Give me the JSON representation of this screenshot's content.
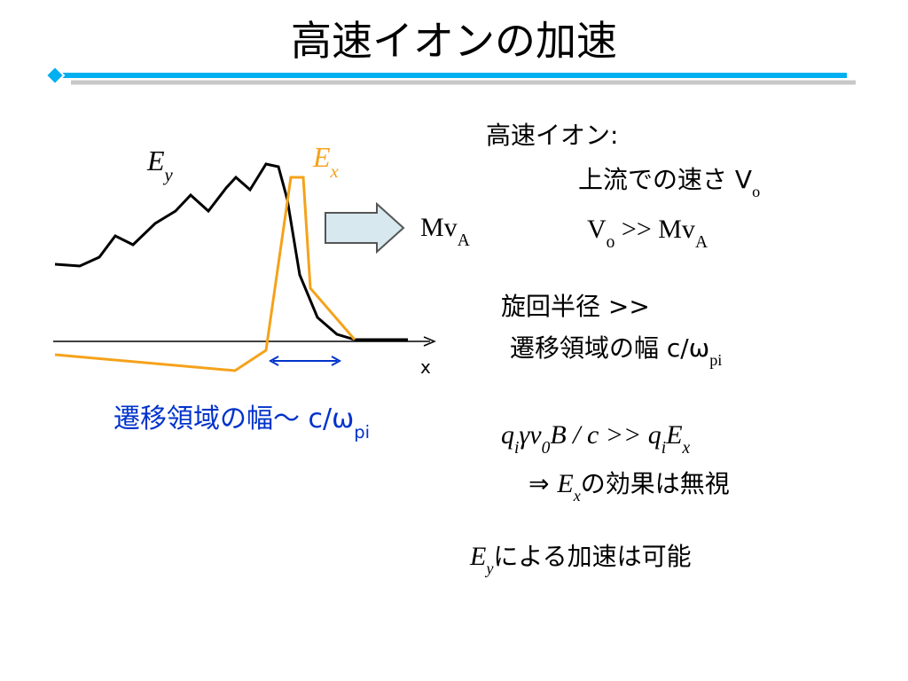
{
  "title": "高速イオンの加速",
  "diagram": {
    "ey": [
      "E",
      "y"
    ],
    "ex": [
      "E",
      "x"
    ],
    "x_axis": "x",
    "arrow_label": [
      "Mv",
      "A"
    ],
    "caption": [
      "遷移領域の幅～ c/ω",
      "pi"
    ]
  },
  "notes": [
    [
      "高速イオン:"
    ],
    [
      "上流での速さ V",
      "o"
    ],
    [
      "V",
      "o",
      " >> Mv",
      "A"
    ],
    [
      "旋回半径 >>"
    ],
    [
      "遷移領域の幅 c/ω",
      "pi"
    ],
    [
      "q",
      "i",
      "γv",
      "0",
      "B / c  >>  q",
      "i",
      "E",
      "x"
    ],
    [
      "⇒  ",
      "E",
      "x",
      "の効果は無視"
    ],
    [
      "E",
      "y",
      "による加速は可能"
    ]
  ]
}
